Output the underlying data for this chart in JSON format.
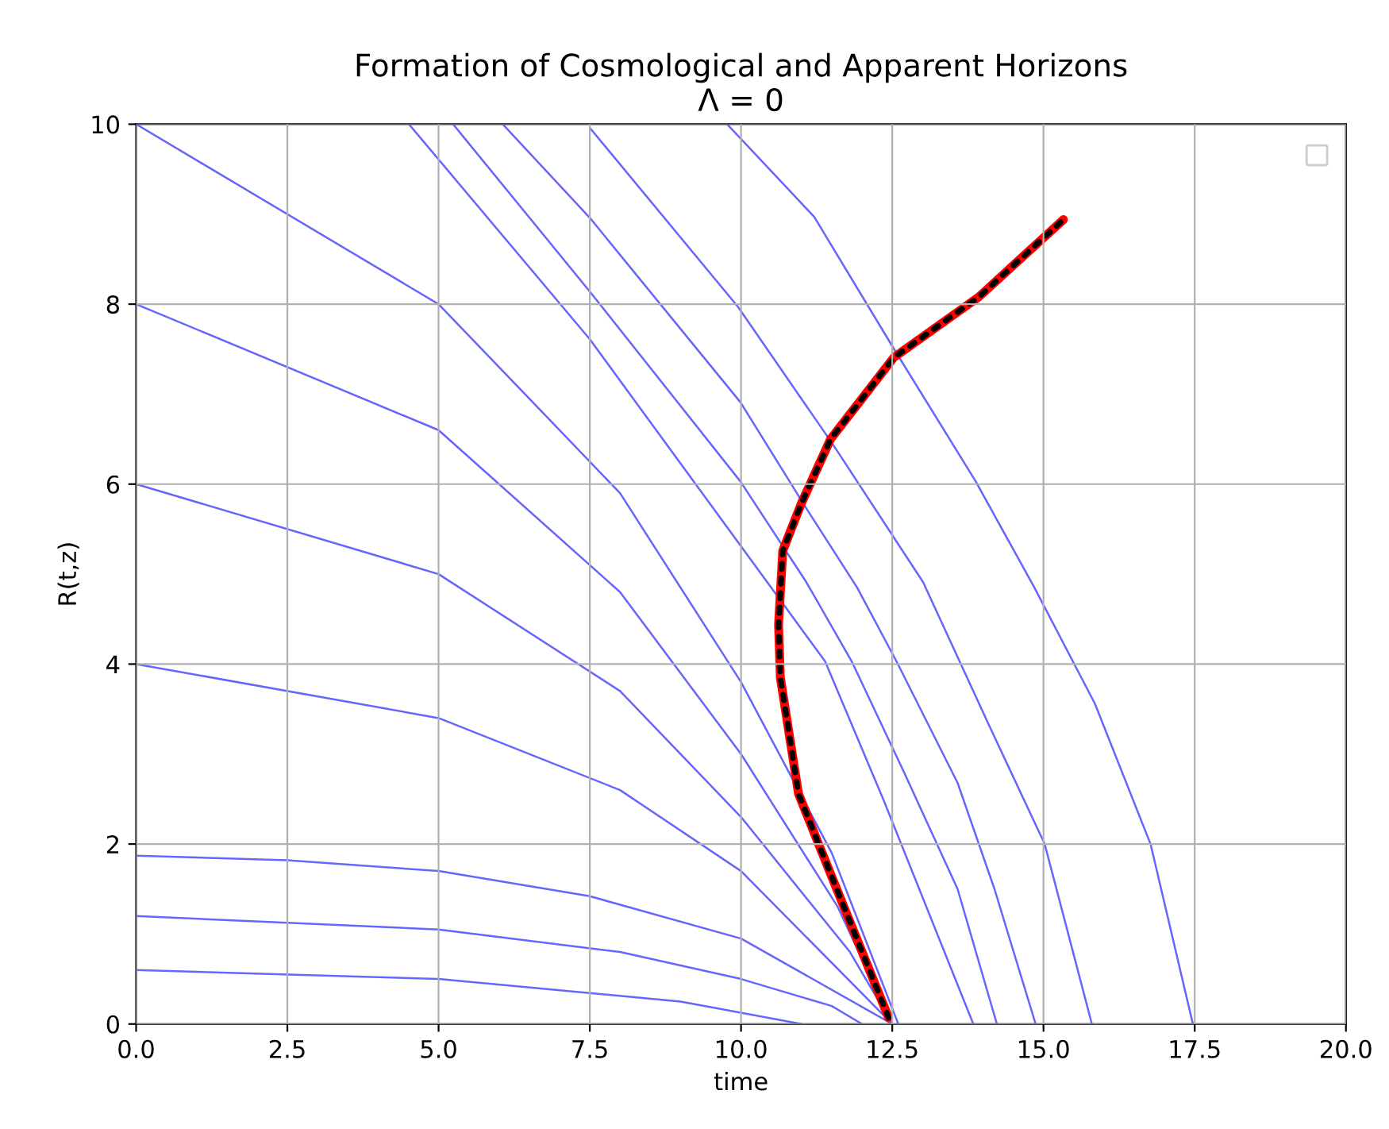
{
  "chart_data": {
    "type": "line",
    "title": "Formation of Cosmological and Apparent Horizons",
    "subtitle": "Λ = 0",
    "xlabel": "time",
    "ylabel": "R(t,z)",
    "xlim": [
      0,
      20
    ],
    "ylim": [
      0,
      10
    ],
    "xticks": [
      {
        "value": 0,
        "label": "0.0"
      },
      {
        "value": 2.5,
        "label": "2.5"
      },
      {
        "value": 5,
        "label": "5.0"
      },
      {
        "value": 7.5,
        "label": "7.5"
      },
      {
        "value": 10,
        "label": "10.0"
      },
      {
        "value": 12.5,
        "label": "12.5"
      },
      {
        "value": 15,
        "label": "15.0"
      },
      {
        "value": 17.5,
        "label": "17.5"
      },
      {
        "value": 20,
        "label": "20.0"
      }
    ],
    "yticks": [
      0,
      2,
      4,
      6,
      8,
      10
    ],
    "grid": true,
    "line_style": "solid",
    "series": [
      {
        "color": "#6666ff",
        "x": [
          9.77,
          11.21,
          12.53,
          13.88,
          14.85,
          15.85,
          16.77,
          17.47
        ],
        "values": [
          10,
          8.97,
          7.5,
          6.03,
          4.85,
          3.56,
          2.0,
          0
        ]
      },
      {
        "color": "#6666ff",
        "x": [
          7.5,
          9.95,
          11.52,
          13.01,
          14.1,
          15.02,
          15.8
        ],
        "values": [
          9.96,
          7.97,
          6.44,
          4.91,
          3.32,
          2.0,
          0
        ]
      },
      {
        "color": "#6666ff",
        "x": [
          6.06,
          7.5,
          9.99,
          11.08,
          11.92,
          12.57,
          13.58,
          14.19,
          14.87
        ],
        "values": [
          10,
          8.96,
          6.91,
          5.73,
          4.85,
          4.03,
          2.68,
          1.5,
          0
        ]
      },
      {
        "color": "#6666ff",
        "x": [
          5.24,
          7.5,
          9.99,
          11.08,
          11.83,
          12.7,
          13.58,
          14.23
        ],
        "values": [
          10,
          8.14,
          6.03,
          4.91,
          4.03,
          2.79,
          1.5,
          0
        ]
      },
      {
        "color": "#6666ff",
        "x": [
          4.51,
          7.5,
          11.39,
          12.35,
          13.84
        ],
        "values": [
          10,
          7.61,
          4.03,
          2.5,
          0
        ]
      },
      {
        "color": "#6666ff",
        "x": [
          0,
          5,
          8,
          10,
          11.5,
          12.6
        ],
        "values": [
          10,
          8.0,
          5.9,
          3.8,
          1.9,
          0
        ]
      },
      {
        "color": "#6666ff",
        "x": [
          0,
          5,
          8,
          10,
          11.6,
          12.5
        ],
        "values": [
          8,
          6.6,
          4.8,
          3.0,
          1.3,
          0
        ]
      },
      {
        "color": "#6666ff",
        "x": [
          0,
          5,
          8,
          10,
          11.8,
          12.5
        ],
        "values": [
          6,
          5.0,
          3.7,
          2.3,
          0.8,
          0
        ]
      },
      {
        "color": "#6666ff",
        "x": [
          0,
          5,
          8,
          10,
          12.5
        ],
        "values": [
          4,
          3.4,
          2.6,
          1.7,
          0
        ]
      },
      {
        "color": "#6666ff",
        "x": [
          0,
          2.5,
          5,
          7.5,
          10,
          12.5
        ],
        "values": [
          1.87,
          1.82,
          1.7,
          1.42,
          0.95,
          0
        ]
      },
      {
        "color": "#6666ff",
        "x": [
          0,
          5,
          8,
          10,
          11.5,
          12
        ],
        "values": [
          1.2,
          1.05,
          0.8,
          0.5,
          0.2,
          0
        ]
      },
      {
        "color": "#6666ff",
        "x": [
          0,
          5,
          9,
          11
        ],
        "values": [
          0.6,
          0.5,
          0.25,
          0
        ]
      },
      {
        "color": "#ff0000",
        "x": [
          12.44,
          11.3,
          10.95,
          10.65,
          10.62,
          10.69,
          11.0,
          11.48,
          12.53,
          13.93,
          15.33
        ],
        "values": [
          0.07,
          1.97,
          2.56,
          3.85,
          4.44,
          5.26,
          5.79,
          6.5,
          7.41,
          8.08,
          8.94
        ]
      },
      {
        "color": "#000000",
        "line_style": "dotted",
        "x": [
          12.44,
          11.3,
          10.95,
          10.65,
          10.62,
          10.69,
          11.0,
          11.48,
          12.53,
          13.93,
          15.33
        ],
        "values": [
          0.07,
          1.97,
          2.56,
          3.85,
          4.44,
          5.26,
          5.79,
          6.5,
          7.41,
          8.08,
          8.94
        ]
      }
    ]
  }
}
